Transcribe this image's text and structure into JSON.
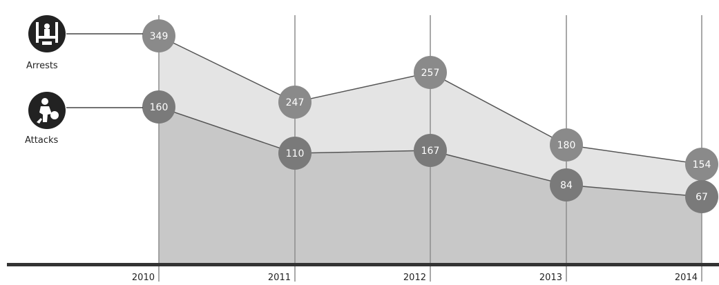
{
  "chart_data": {
    "type": "area",
    "x": [
      "2010",
      "2011",
      "2012",
      "2013",
      "2014"
    ],
    "series": [
      {
        "name": "Arrests",
        "values": [
          349,
          247,
          257,
          180,
          154
        ],
        "color": "#e4e4e4",
        "marker_color": "#8a8a8a"
      },
      {
        "name": "Attacks",
        "values": [
          160,
          110,
          167,
          84,
          67
        ],
        "color": "#c8c8c8",
        "marker_color": "#7a7a7a"
      }
    ],
    "legend": {
      "position": "left",
      "items": [
        {
          "label": "Arrests",
          "icon": "arrest-handcuffs-icon"
        },
        {
          "label": "Attacks",
          "icon": "attack-assault-icon"
        }
      ]
    },
    "grid": {
      "vertical": true,
      "horizontal": false
    },
    "title": "",
    "xlabel": "",
    "ylabel": ""
  },
  "colors": {
    "baseline": "#333333",
    "gridline": "#8c8c8c",
    "line": "#555555",
    "icon_bg": "#222222"
  }
}
